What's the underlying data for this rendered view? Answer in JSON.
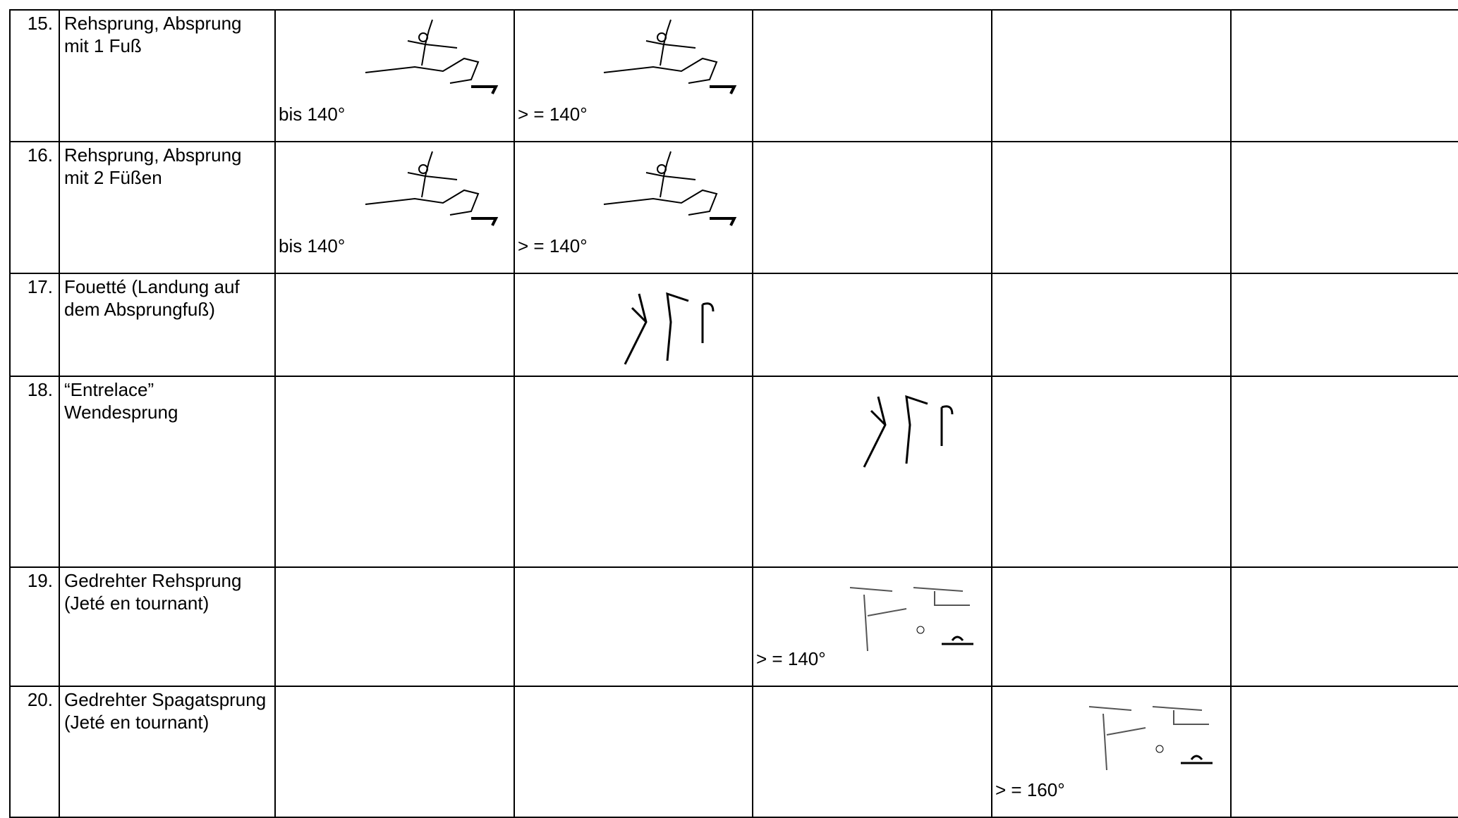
{
  "table": {
    "rows": [
      {
        "number": "15.",
        "name": "Rehsprung, Absprung mit 1 Fuß",
        "cells": [
          "bis 140°",
          "> = 140°",
          null,
          null,
          null
        ]
      },
      {
        "number": "16.",
        "name": "Rehsprung, Absprung mit 2 Füßen",
        "cells": [
          "bis 140°",
          "> = 140°",
          null,
          null,
          null
        ]
      },
      {
        "number": "17.",
        "name": "Fouetté (Landung auf dem Absprungfuß)",
        "cells": [
          null,
          null,
          null,
          null,
          null
        ]
      },
      {
        "number": "18.",
        "name": "“Entrelace” Wendesprung",
        "cells": [
          null,
          null,
          null,
          null,
          null
        ]
      },
      {
        "number": "19.",
        "name": "Gedrehter Rehsprung (Jeté en tournant)",
        "cells": [
          null,
          null,
          "> = 140°",
          null,
          null
        ]
      },
      {
        "number": "20.",
        "name": "Gedrehter Spagatsprung (Jeté en tournant)",
        "cells": [
          null,
          null,
          null,
          "> = 160°",
          null
        ]
      }
    ]
  }
}
